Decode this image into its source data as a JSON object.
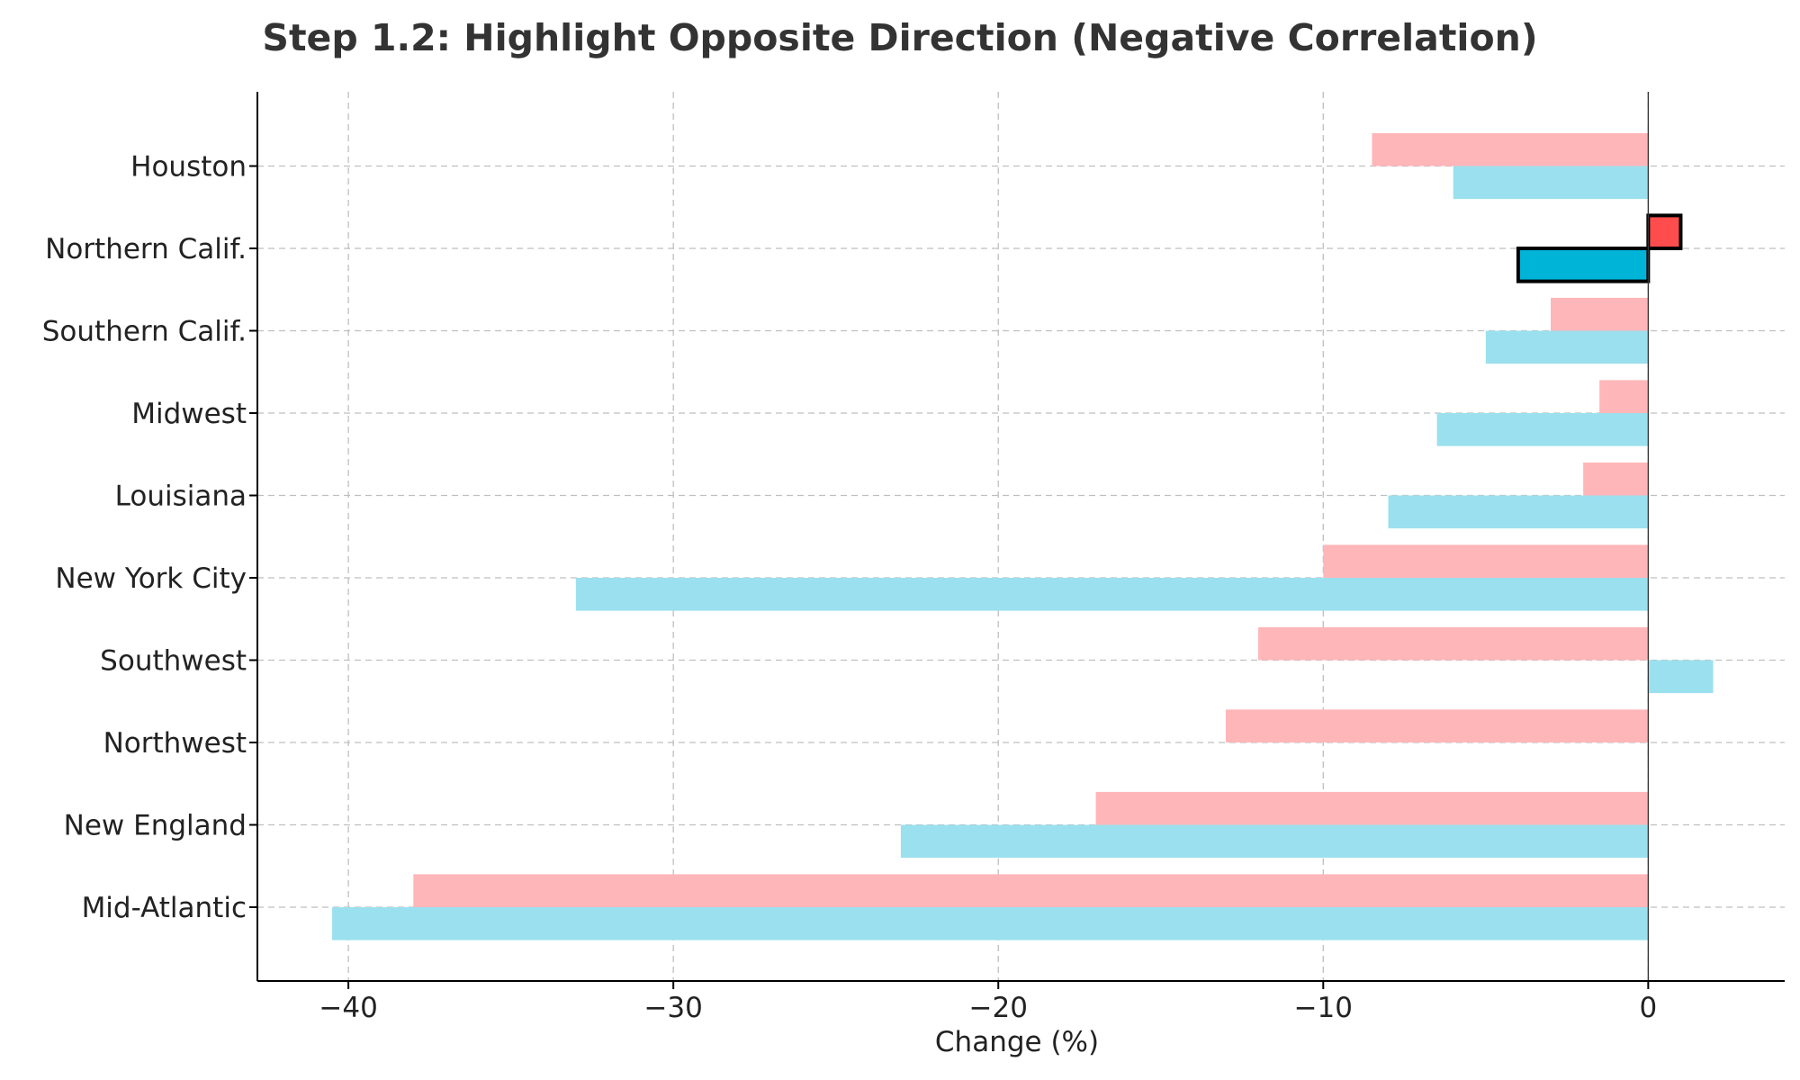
{
  "chart_data": {
    "type": "bar",
    "orientation": "horizontal",
    "title": "Step 1.2: Highlight Opposite Direction (Negative Correlation)",
    "xlabel": "Change (%)",
    "ylabel": "",
    "xlim": [
      -42.8,
      4.2
    ],
    "xticks": [
      -40,
      -30,
      -20,
      -10,
      0
    ],
    "xtick_labels": [
      "−40",
      "−30",
      "−20",
      "−10",
      "0"
    ],
    "grid": true,
    "categories": [
      "Mid-Atlantic",
      "New England",
      "Northwest",
      "Southwest",
      "New York City",
      "Louisiana",
      "Midwest",
      "Southern Calif.",
      "Northern Calif.",
      "Houston"
    ],
    "series": [
      {
        "color": "#ffb6b9",
        "highlight_color": "#ff4c4c",
        "values": [
          -38.0,
          -17.0,
          -13.0,
          -12.0,
          -10.0,
          -2.0,
          -1.5,
          -3.0,
          1.0,
          -8.5
        ]
      },
      {
        "color": "#9be0ee",
        "highlight_color": "#00b4d8",
        "values": [
          -40.5,
          -23.0,
          0.0,
          2.0,
          -33.0,
          -8.0,
          -6.5,
          -5.0,
          -4.0,
          -6.0
        ]
      }
    ],
    "highlighted_category": "Northern Calif."
  }
}
